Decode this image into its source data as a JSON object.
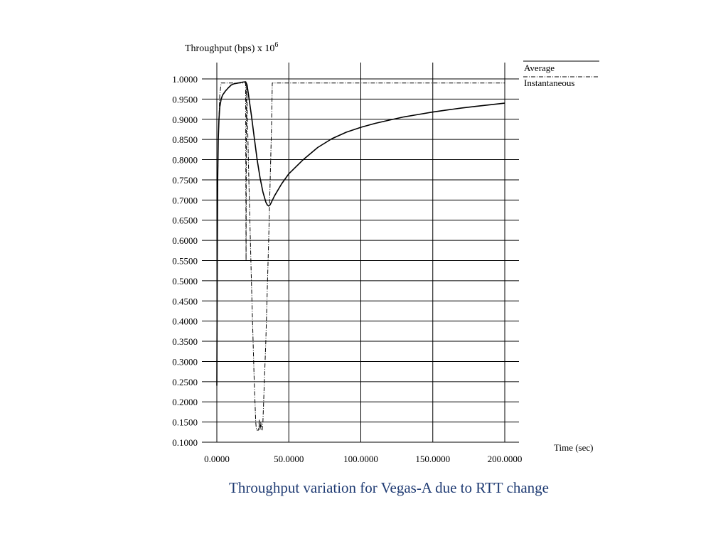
{
  "caption": "Throughput variation for Vegas-A due to RTT change",
  "chart_data": {
    "type": "line",
    "ylabel": "Throughput (bps) x 10",
    "ylabel_exponent": "6",
    "xlabel": "Time (sec)",
    "xlim": [
      0,
      200
    ],
    "ylim": [
      0.1,
      1.0
    ],
    "grid": true,
    "legend_position": "top-right",
    "x_ticks": [
      0,
      50,
      100,
      150,
      200
    ],
    "x_tick_labels": [
      "0.0000",
      "50.0000",
      "100.0000",
      "150.0000",
      "200.0000"
    ],
    "y_ticks": [
      1.0,
      0.95,
      0.9,
      0.85,
      0.8,
      0.75,
      0.7,
      0.65,
      0.6,
      0.55,
      0.5,
      0.45,
      0.4,
      0.35,
      0.3,
      0.25,
      0.2,
      0.15,
      0.1
    ],
    "y_tick_labels": [
      "1.0000",
      "0.9500",
      "0.9000",
      "0.8500",
      "0.8000",
      "0.7500",
      "0.7000",
      "0.6500",
      "0.6000",
      "0.5500",
      "0.5000",
      "0.4500",
      "0.4000",
      "0.3500",
      "0.3000",
      "0.2500",
      "0.2000",
      "0.1500",
      "0.1000"
    ],
    "series": [
      {
        "name": "Average",
        "style": "solid",
        "color": "#000000",
        "x": [
          0,
          0.3,
          0.6,
          1,
          1.5,
          2,
          3,
          4,
          5,
          6,
          8,
          10,
          12,
          15,
          18,
          20,
          21,
          22,
          24,
          26,
          28,
          30,
          32,
          34,
          35,
          36,
          37,
          38,
          40,
          45,
          50,
          60,
          70,
          80,
          90,
          100,
          110,
          120,
          130,
          140,
          150,
          160,
          170,
          180,
          190,
          200
        ],
        "y": [
          0.24,
          0.55,
          0.75,
          0.85,
          0.9,
          0.93,
          0.95,
          0.96,
          0.965,
          0.97,
          0.978,
          0.985,
          0.988,
          0.99,
          0.992,
          0.993,
          0.985,
          0.96,
          0.91,
          0.855,
          0.8,
          0.755,
          0.72,
          0.695,
          0.688,
          0.685,
          0.688,
          0.695,
          0.71,
          0.74,
          0.765,
          0.8,
          0.83,
          0.852,
          0.868,
          0.88,
          0.89,
          0.898,
          0.906,
          0.912,
          0.918,
          0.923,
          0.928,
          0.932,
          0.936,
          0.94
        ]
      },
      {
        "name": "Instantaneous",
        "style": "dashdot",
        "color": "#000000",
        "x": [
          0,
          0.5,
          1,
          2,
          3,
          5,
          19,
          20,
          20.3,
          20.6,
          21,
          22,
          24,
          26,
          27,
          27.5,
          29,
          29.5,
          30,
          30.5,
          31,
          31.5,
          32,
          34,
          36,
          38,
          38.5,
          39,
          200
        ],
        "y": [
          0.68,
          0.7,
          0.85,
          0.96,
          0.99,
          0.99,
          0.99,
          0.99,
          0.55,
          0.99,
          0.95,
          0.78,
          0.5,
          0.25,
          0.15,
          0.13,
          0.13,
          0.155,
          0.13,
          0.15,
          0.13,
          0.13,
          0.15,
          0.35,
          0.6,
          0.88,
          0.99,
          0.99,
          0.99
        ]
      }
    ]
  }
}
